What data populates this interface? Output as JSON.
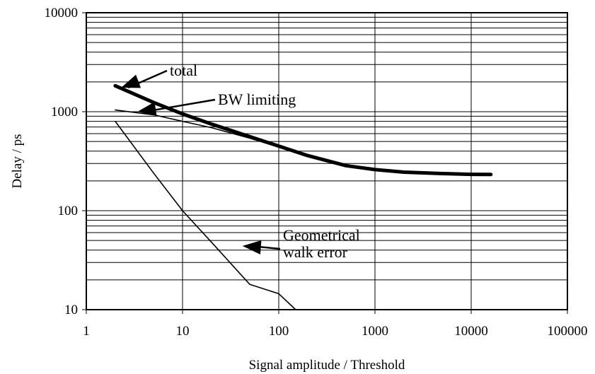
{
  "chart_data": {
    "type": "line",
    "title": "",
    "xlabel": "Signal amplitude / Threshold",
    "ylabel": "Delay / ps",
    "xscale": "log",
    "yscale": "log",
    "xlim": [
      1,
      100000
    ],
    "ylim": [
      10,
      10000
    ],
    "x_tick_labels": [
      "1",
      "10",
      "100",
      "1000",
      "10000",
      "100000"
    ],
    "y_tick_labels": [
      "10",
      "100",
      "1000",
      "10000"
    ],
    "grid": "major vertical and major/minor horizontal",
    "legend": "none",
    "series": [
      {
        "name": "total",
        "style": "thick",
        "x": [
          2,
          5,
          10,
          20,
          50,
          100,
          200,
          500,
          1000,
          2000,
          5000,
          10000,
          16000
        ],
        "y": [
          1830,
          1240,
          950,
          750,
          560,
          450,
          360,
          285,
          260,
          245,
          237,
          233,
          232
        ]
      },
      {
        "name": "BW limiting",
        "style": "thin",
        "x": [
          2,
          5,
          10,
          20,
          50,
          100,
          200
        ],
        "y": [
          1040,
          930,
          800,
          690,
          540,
          440,
          360
        ]
      },
      {
        "name": "Geometrical walk error",
        "style": "thin",
        "x": [
          2,
          5,
          10,
          20,
          50,
          100,
          150
        ],
        "y": [
          800,
          240,
          100,
          48,
          18,
          14.5,
          10
        ]
      }
    ],
    "annotations": [
      {
        "lines": [
          "total"
        ],
        "series": "total",
        "x": 2.3,
        "y": 1750
      },
      {
        "lines": [
          "BW limiting"
        ],
        "series": "BW limiting",
        "x": 3.4,
        "y": 1000
      },
      {
        "lines": [
          "Geometrical",
          "walk error"
        ],
        "series": "Geometrical walk error",
        "x": 42,
        "y": 44
      }
    ]
  }
}
